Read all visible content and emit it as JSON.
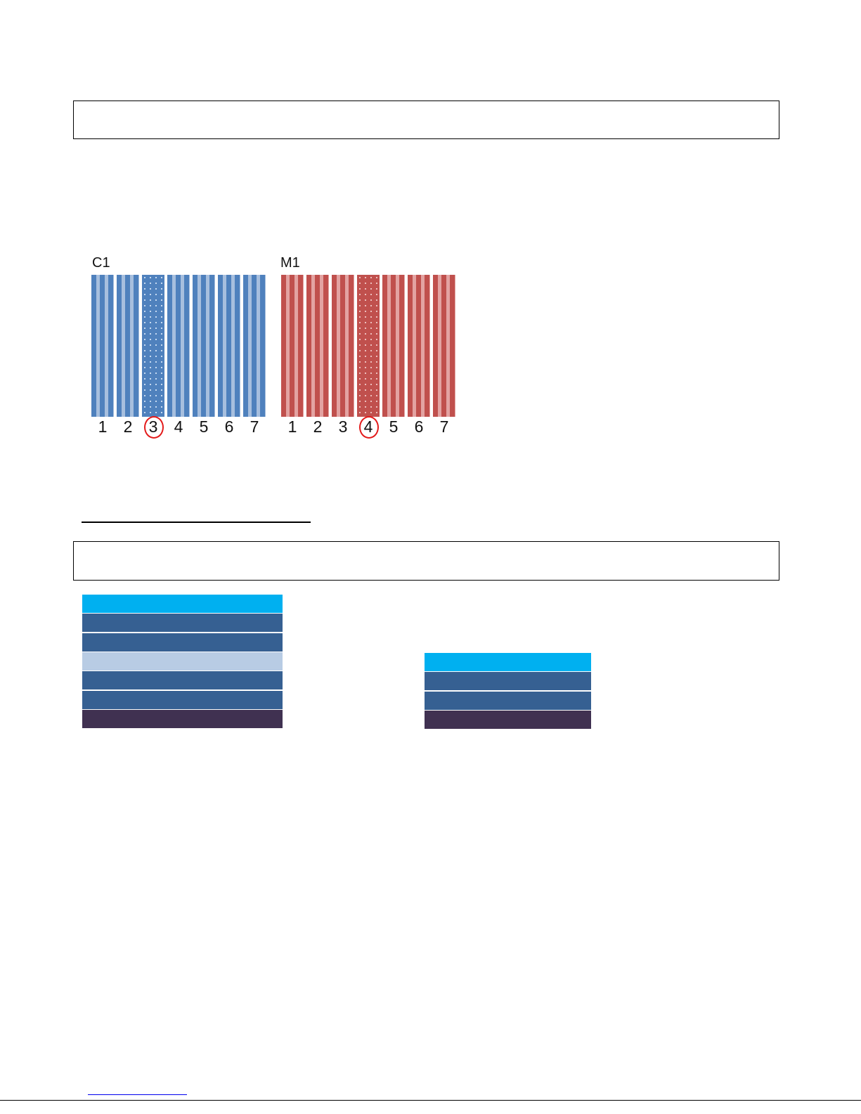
{
  "figure": {
    "cyan": {
      "label": "C1",
      "numbers": [
        "1",
        "2",
        "3",
        "4",
        "5",
        "6",
        "7"
      ],
      "selected": "3",
      "color": "#4f81bd"
    },
    "magenta": {
      "label": "M1",
      "numbers": [
        "1",
        "2",
        "3",
        "4",
        "5",
        "6",
        "7"
      ],
      "selected": "4",
      "color": "#c0504d"
    }
  },
  "tables": {
    "left_row_colors": [
      "#00b0f0",
      "#366092",
      "#366092",
      "#b8cce4",
      "#366092",
      "#366092",
      "#403151"
    ],
    "right_row_colors": [
      "#00b0f0",
      "#366092",
      "#366092",
      "#403151"
    ]
  }
}
